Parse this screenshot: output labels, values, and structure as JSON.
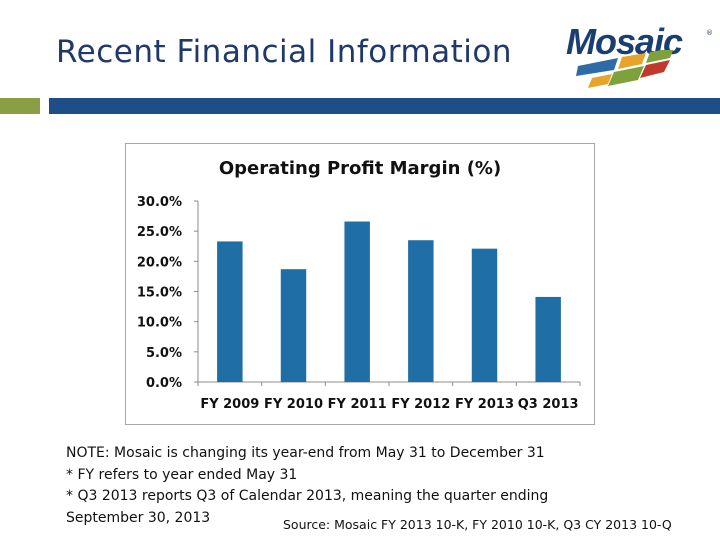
{
  "slide": {
    "title": "Recent Financial Information"
  },
  "logo": {
    "wordmark": "Mosaic",
    "registered": "®",
    "colors": [
      "#2e6aa8",
      "#e6a52a",
      "#7ea13b",
      "#bf3a2b"
    ]
  },
  "accent_colors": {
    "title": "#1f3a6a",
    "rule_green": "#8a9e44",
    "rule_blue": "#1f4e86",
    "bar": "#1f6fa6"
  },
  "chart_data": {
    "type": "bar",
    "title": "Operating Profit Margin (%)",
    "categories": [
      "FY 2009",
      "FY 2010",
      "FY 2011",
      "FY 2012",
      "FY 2013",
      "Q3 2013"
    ],
    "values": [
      23.3,
      18.7,
      26.6,
      23.5,
      22.1,
      14.1
    ],
    "ylim": [
      0,
      30
    ],
    "y_ticks": [
      "0.0%",
      "5.0%",
      "10.0%",
      "15.0%",
      "20.0%",
      "25.0%",
      "30.0%"
    ],
    "y_tick_values": [
      0,
      5,
      10,
      15,
      20,
      25,
      30
    ],
    "grid": false,
    "legend": "none",
    "color": "#1f6fa6"
  },
  "notes": {
    "line1": "NOTE: Mosaic is changing its year-end from May 31 to December 31",
    "line2": "* FY refers to year ended May 31",
    "line3": "* Q3 2013 reports Q3 of Calendar 2013, meaning the quarter ending",
    "line4": "September 30, 2013"
  },
  "source": "Source: Mosaic FY 2013 10-K, FY 2010 10-K, Q3 CY 2013 10-Q"
}
